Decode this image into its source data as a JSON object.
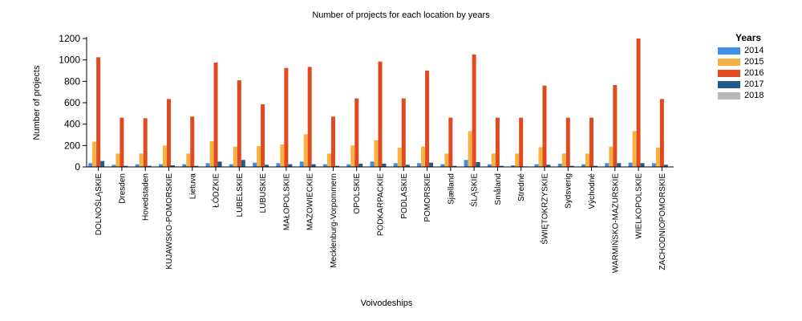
{
  "chart_data": {
    "type": "bar",
    "title": "Number of projects for each location by years",
    "xlabel": "Voivodeships",
    "ylabel": "Number of projects",
    "ylim": [
      0,
      1200
    ],
    "yticks": [
      0,
      200,
      400,
      600,
      800,
      1000,
      1200
    ],
    "grid": false,
    "legend_title": "Years",
    "legend_position": "right",
    "categories": [
      "DOLNOŚLĄSKIE",
      "Dresden",
      "Hovedstaden",
      "KUJAWSKO-POMORSKIE",
      "Lietuva",
      "ŁÓDZKIE",
      "LUBELSKIE",
      "LUBUSKIE",
      "MAŁOPOLSKIE",
      "MAZOWIECKIE",
      "Mecklenburg-Vorpommern",
      "OPOLSKIE",
      "PODKARPACKIE",
      "PODLASKIE",
      "POMORSKIE",
      "Sjælland",
      "ŚLĄSKIE",
      "Småland",
      "Stredné",
      "ŚWIĘTOKRZYSKIE",
      "Sydsverig",
      "Východné",
      "WARMIŃSKO-MAZURSKIE",
      "WIELKOPOLSKIE",
      "ZACHODNIOPOMORSKIE"
    ],
    "series": [
      {
        "name": "2014",
        "color": "#3f8fe6",
        "values": [
          35,
          20,
          25,
          25,
          25,
          35,
          25,
          40,
          35,
          50,
          25,
          25,
          50,
          35,
          35,
          25,
          65,
          25,
          15,
          25,
          30,
          25,
          35,
          40,
          35
        ]
      },
      {
        "name": "2015",
        "color": "#f5b142",
        "values": [
          235,
          125,
          125,
          200,
          125,
          240,
          190,
          195,
          210,
          305,
          125,
          200,
          250,
          180,
          190,
          125,
          335,
          125,
          125,
          185,
          125,
          125,
          190,
          335,
          180
        ]
      },
      {
        "name": "2016",
        "color": "#e04a1f",
        "values": [
          1025,
          460,
          455,
          635,
          470,
          975,
          810,
          585,
          925,
          935,
          470,
          640,
          985,
          640,
          900,
          460,
          1050,
          460,
          460,
          760,
          460,
          460,
          765,
          1200,
          635
        ]
      },
      {
        "name": "2017",
        "color": "#1e5c8e",
        "values": [
          55,
          10,
          10,
          15,
          10,
          50,
          65,
          20,
          25,
          25,
          10,
          30,
          30,
          20,
          40,
          10,
          45,
          10,
          5,
          20,
          10,
          10,
          35,
          35,
          20
        ]
      },
      {
        "name": "2018",
        "color": "#b8b8b8",
        "values": [
          2,
          1,
          1,
          2,
          1,
          2,
          2,
          2,
          2,
          3,
          1,
          2,
          2,
          2,
          2,
          1,
          3,
          1,
          1,
          2,
          1,
          1,
          2,
          3,
          2
        ]
      }
    ]
  }
}
